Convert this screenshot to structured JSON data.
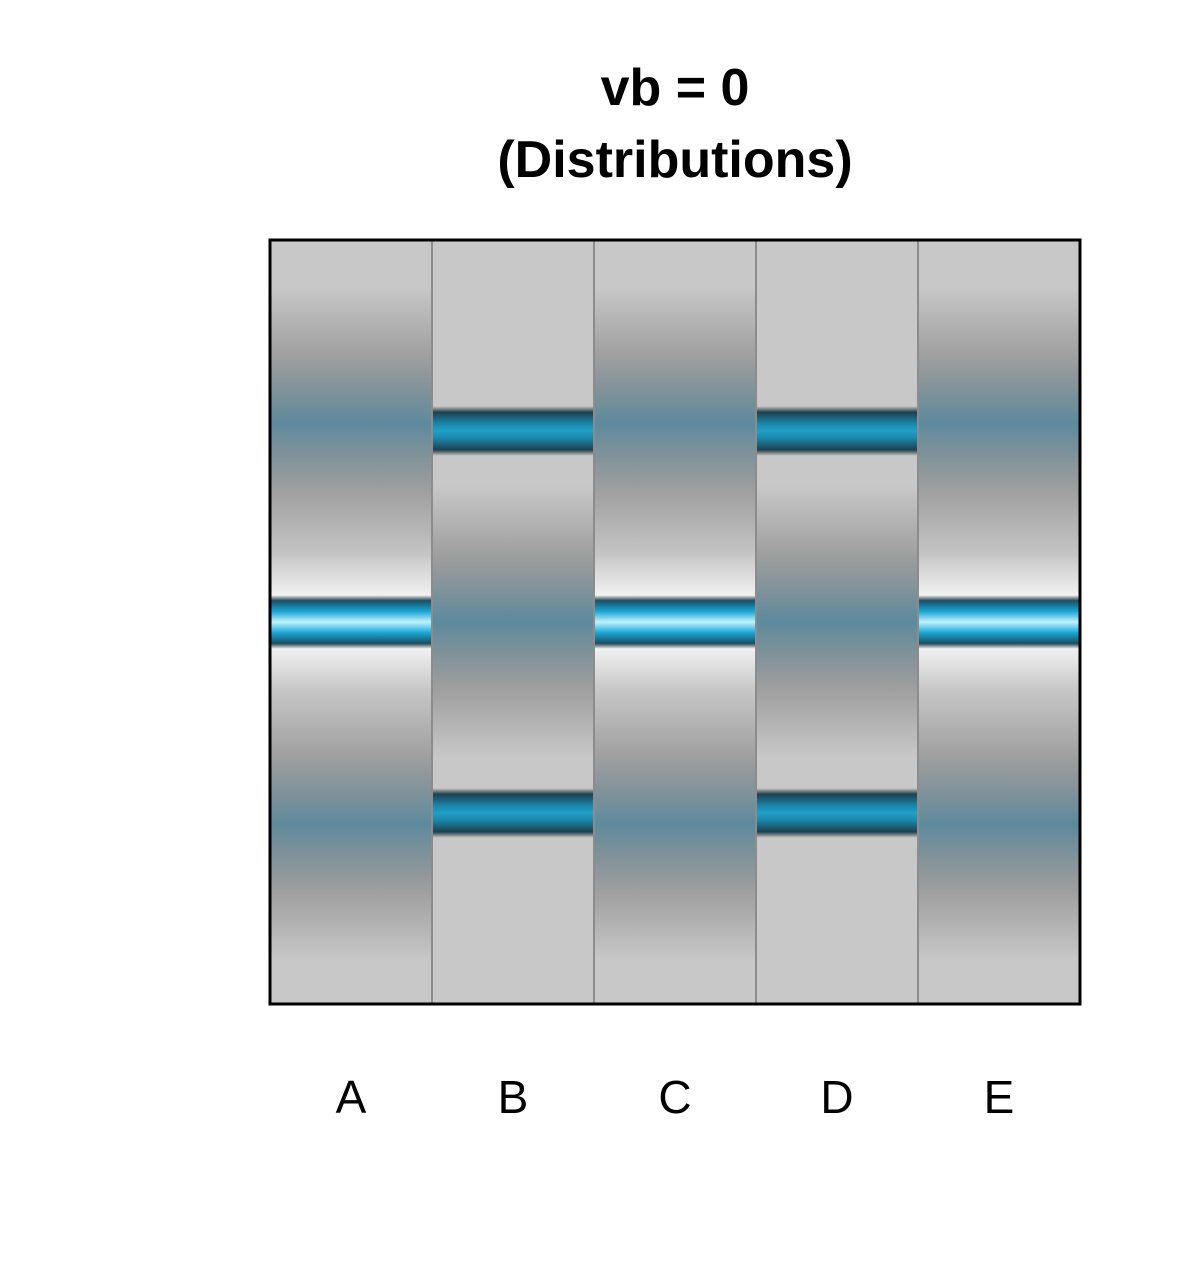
{
  "chart_data": {
    "type": "heatmap",
    "title": "vb = 0",
    "subtitle": "(Distributions)",
    "xlabel": "",
    "ylabel": "",
    "categories": [
      "A",
      "B",
      "C",
      "D",
      "E"
    ],
    "ylim": [
      -1,
      1
    ],
    "grid": false,
    "legend": "none",
    "colors": {
      "background": "#c8c8c8",
      "shade": "#6e6e6e",
      "spread_tint": "#4a7f96",
      "narrow_band": "#1a86aa",
      "bright_band": "#3ccdf5",
      "frame": "#000000",
      "separator": "#8c8c8c"
    },
    "series": [
      {
        "category": "A",
        "bands": [
          {
            "y": 0.0,
            "spread": 0.05,
            "style": "bright"
          },
          {
            "y": 0.52,
            "spread": 0.17,
            "style": "diffuse"
          },
          {
            "y": -0.53,
            "spread": 0.17,
            "style": "diffuse"
          }
        ]
      },
      {
        "category": "B",
        "bands": [
          {
            "y": 0.5,
            "spread": 0.05,
            "style": "narrow"
          },
          {
            "y": 0.0,
            "spread": 0.17,
            "style": "diffuse"
          },
          {
            "y": -0.5,
            "spread": 0.05,
            "style": "narrow"
          }
        ]
      },
      {
        "category": "C",
        "bands": [
          {
            "y": 0.0,
            "spread": 0.05,
            "style": "bright"
          },
          {
            "y": 0.52,
            "spread": 0.17,
            "style": "diffuse"
          },
          {
            "y": -0.53,
            "spread": 0.17,
            "style": "diffuse"
          }
        ]
      },
      {
        "category": "D",
        "bands": [
          {
            "y": 0.5,
            "spread": 0.05,
            "style": "narrow"
          },
          {
            "y": 0.0,
            "spread": 0.17,
            "style": "diffuse"
          },
          {
            "y": -0.5,
            "spread": 0.05,
            "style": "narrow"
          }
        ]
      },
      {
        "category": "E",
        "bands": [
          {
            "y": 0.0,
            "spread": 0.05,
            "style": "bright"
          },
          {
            "y": 0.52,
            "spread": 0.17,
            "style": "diffuse"
          },
          {
            "y": -0.53,
            "spread": 0.17,
            "style": "diffuse"
          }
        ]
      }
    ]
  }
}
